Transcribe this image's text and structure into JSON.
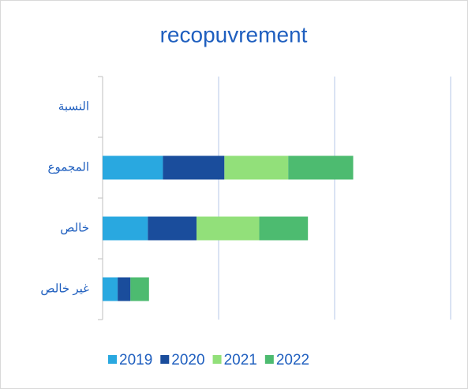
{
  "chart_data": {
    "type": "stacked-barh",
    "title": "recopuvrement",
    "categories": [
      "النسبة",
      "المجموع",
      "خالص",
      "غير خالص"
    ],
    "series": [
      {
        "name": "2019",
        "color": "#29a8e0",
        "values": [
          null,
          26,
          19.5,
          6.5
        ]
      },
      {
        "name": "2020",
        "color": "#1a4d9c",
        "values": [
          null,
          26.5,
          21,
          5.5
        ]
      },
      {
        "name": "2021",
        "color": "#92e07a",
        "values": [
          null,
          27.5,
          27,
          null
        ]
      },
      {
        "name": "2022",
        "color": "#4dbb70",
        "values": [
          null,
          28,
          21,
          8
        ]
      }
    ],
    "xlim": [
      0,
      150
    ],
    "xticks": [
      0,
      50,
      100,
      150
    ],
    "grid": true,
    "legend": "bottom"
  }
}
